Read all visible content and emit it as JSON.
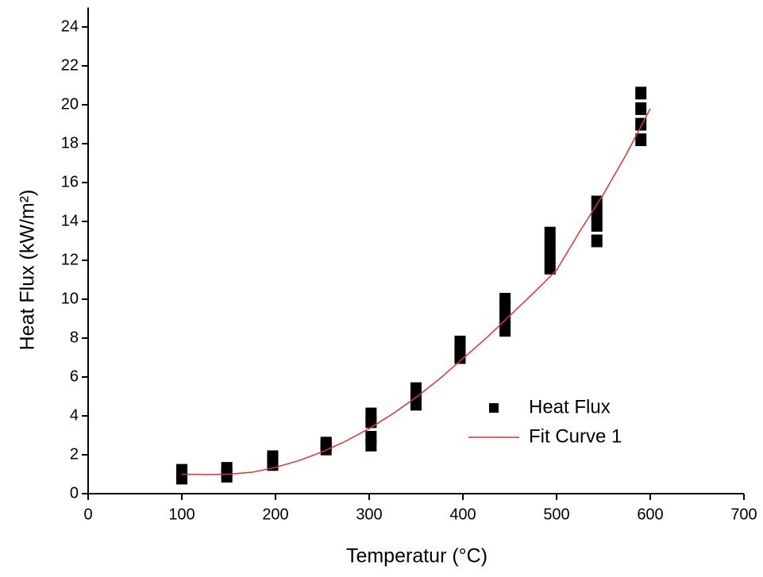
{
  "chart_data": {
    "type": "scatter",
    "xlabel": "Temperatur (°C)",
    "ylabel": "Heat Flux (kW/m²)",
    "xlim": [
      0,
      700
    ],
    "ylim": [
      0,
      25
    ],
    "xticks": [
      0,
      100,
      200,
      300,
      400,
      500,
      600,
      700
    ],
    "yticks": [
      0,
      2,
      4,
      6,
      8,
      10,
      12,
      14,
      16,
      18,
      20,
      22,
      24
    ],
    "grid": false,
    "series": [
      {
        "name": "Heat Flux",
        "color": "#000000",
        "style": "markers",
        "x": [
          100,
          100,
          100,
          148,
          148,
          148,
          197,
          197,
          197,
          254,
          254,
          254,
          302,
          302,
          302,
          302,
          350,
          350,
          350,
          397,
          397,
          397,
          445,
          445,
          445,
          445,
          493,
          493,
          493,
          493,
          543,
          543,
          543,
          543,
          590,
          590,
          590,
          590
        ],
        "values": [
          0.8,
          1.0,
          1.2,
          0.9,
          1.1,
          1.3,
          1.5,
          1.7,
          1.9,
          2.3,
          2.5,
          2.6,
          2.5,
          2.9,
          3.7,
          4.1,
          4.6,
          5.0,
          5.4,
          7.0,
          7.4,
          7.8,
          8.4,
          9.0,
          9.6,
          10.0,
          11.6,
          12.2,
          12.8,
          13.4,
          13.0,
          13.8,
          14.4,
          15.0,
          18.2,
          19.0,
          19.8,
          20.6
        ]
      },
      {
        "name": "Fit Curve 1",
        "color": "#e8302c",
        "style": "line",
        "x": [
          100,
          125,
          150,
          175,
          200,
          225,
          250,
          275,
          300,
          325,
          350,
          375,
          400,
          425,
          450,
          475,
          500,
          525,
          550,
          575,
          600
        ],
        "values": [
          1.0,
          0.98,
          1.0,
          1.1,
          1.35,
          1.7,
          2.15,
          2.7,
          3.35,
          4.1,
          4.95,
          5.9,
          6.95,
          8.0,
          9.15,
          10.3,
          11.5,
          13.5,
          15.4,
          17.5,
          19.8
        ]
      }
    ]
  }
}
